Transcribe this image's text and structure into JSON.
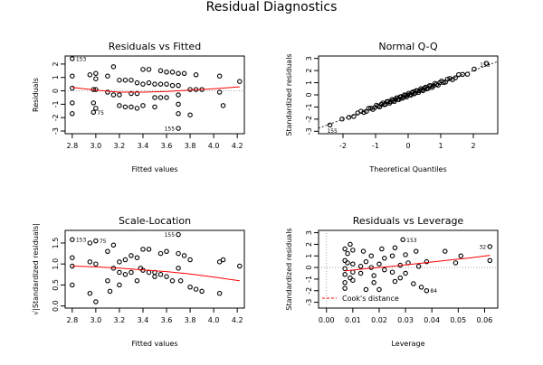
{
  "figure_title": "Residual Diagnostics",
  "chart_data": [
    {
      "type": "scatter",
      "title": "Residuals vs Fitted",
      "xlabel": "Fitted values",
      "ylabel": "Residuals",
      "xlim": [
        2.74,
        4.26
      ],
      "ylim": [
        -3.2,
        2.6
      ],
      "xticks": [
        "2.8",
        "3.0",
        "3.2",
        "3.4",
        "3.6",
        "3.8",
        "4.0",
        "4.2"
      ],
      "xtick_values": [
        2.8,
        3.0,
        3.2,
        3.4,
        3.6,
        3.8,
        4.0,
        4.2
      ],
      "yticks": [
        "-3",
        "-2",
        "-1",
        "0",
        "1",
        "2"
      ],
      "ytick_values": [
        -3,
        -2,
        -1,
        0,
        1,
        2
      ],
      "points": [
        [
          2.8,
          2.4
        ],
        [
          2.8,
          1.1
        ],
        [
          2.8,
          0.2
        ],
        [
          2.8,
          -0.9
        ],
        [
          2.8,
          -1.7
        ],
        [
          2.95,
          1.2
        ],
        [
          2.98,
          0.1
        ],
        [
          2.98,
          -0.9
        ],
        [
          2.98,
          -1.6
        ],
        [
          3.0,
          1.3
        ],
        [
          3.0,
          0.9
        ],
        [
          3.0,
          0.1
        ],
        [
          3.0,
          -1.3
        ],
        [
          3.1,
          1.1
        ],
        [
          3.1,
          -0.1
        ],
        [
          3.15,
          1.8
        ],
        [
          3.15,
          -0.3
        ],
        [
          3.2,
          0.8
        ],
        [
          3.2,
          -0.3
        ],
        [
          3.2,
          -1.1
        ],
        [
          3.25,
          0.8
        ],
        [
          3.25,
          -1.2
        ],
        [
          3.3,
          0.8
        ],
        [
          3.3,
          -0.2
        ],
        [
          3.3,
          -1.2
        ],
        [
          3.35,
          0.6
        ],
        [
          3.35,
          -0.2
        ],
        [
          3.35,
          -1.3
        ],
        [
          3.4,
          1.6
        ],
        [
          3.4,
          0.5
        ],
        [
          3.4,
          -1.1
        ],
        [
          3.45,
          1.6
        ],
        [
          3.45,
          0.6
        ],
        [
          3.5,
          0.5
        ],
        [
          3.5,
          -0.5
        ],
        [
          3.5,
          -1.2
        ],
        [
          3.55,
          1.5
        ],
        [
          3.55,
          0.5
        ],
        [
          3.55,
          -0.5
        ],
        [
          3.6,
          1.4
        ],
        [
          3.6,
          0.5
        ],
        [
          3.6,
          -0.5
        ],
        [
          3.65,
          1.4
        ],
        [
          3.65,
          0.4
        ],
        [
          3.7,
          1.3
        ],
        [
          3.7,
          0.4
        ],
        [
          3.7,
          -0.3
        ],
        [
          3.7,
          -1.0
        ],
        [
          3.7,
          -1.7
        ],
        [
          3.7,
          -2.8
        ],
        [
          3.75,
          1.3
        ],
        [
          3.8,
          0.1
        ],
        [
          3.8,
          -1.8
        ],
        [
          3.85,
          1.2
        ],
        [
          3.85,
          0.1
        ],
        [
          3.9,
          0.1
        ],
        [
          4.05,
          1.1
        ],
        [
          4.05,
          -0.1
        ],
        [
          4.08,
          -1.1
        ],
        [
          4.22,
          0.7
        ]
      ],
      "smooth_x": [
        2.8,
        3.0,
        3.2,
        3.4,
        3.6,
        3.8,
        4.0,
        4.22
      ],
      "smooth_y": [
        0.25,
        0.05,
        -0.1,
        -0.1,
        -0.05,
        0.05,
        0.15,
        0.3
      ],
      "labels": [
        {
          "text": "153",
          "x": 2.8,
          "y": 2.4
        },
        {
          "text": "75",
          "x": 2.98,
          "y": -1.6
        },
        {
          "text": "155",
          "x": 3.7,
          "y": -2.8
        }
      ]
    },
    {
      "type": "scatter",
      "title": "Normal Q-Q",
      "xlabel": "Theoretical Quantiles",
      "ylabel": "Standardized residuals",
      "xlim": [
        -2.75,
        2.75
      ],
      "ylim": [
        -3.2,
        3.2
      ],
      "xticks": [
        "-2",
        "-1",
        "0",
        "1",
        "2"
      ],
      "xtick_values": [
        -2,
        -1,
        0,
        1,
        2
      ],
      "yticks": [
        "-3",
        "-2",
        "-1",
        "0",
        "1",
        "2",
        "3"
      ],
      "ytick_values": [
        -3,
        -2,
        -1,
        0,
        1,
        2,
        3
      ],
      "qq_n": 76,
      "qq_line": [
        [
          -2.75,
          -2.75
        ],
        [
          2.75,
          2.75
        ]
      ],
      "labels": [
        {
          "text": "153",
          "x": 2.6,
          "y": 2.5
        },
        {
          "text": "155",
          "x": -2.6,
          "y": -2.95
        }
      ]
    },
    {
      "type": "scatter",
      "title": "Scale-Location",
      "xlabel": "Fitted values",
      "ylabel": "√|Standardized residuals|",
      "xlim": [
        2.74,
        4.26
      ],
      "ylim": [
        -0.05,
        1.8
      ],
      "xticks": [
        "2.8",
        "3.0",
        "3.2",
        "3.4",
        "3.6",
        "3.8",
        "4.0",
        "4.2"
      ],
      "xtick_values": [
        2.8,
        3.0,
        3.2,
        3.4,
        3.6,
        3.8,
        4.0,
        4.2
      ],
      "yticks": [
        "0.0",
        "0.5",
        "1.0",
        "1.5"
      ],
      "ytick_values": [
        0.0,
        0.5,
        1.0,
        1.5
      ],
      "points": [
        [
          2.8,
          1.58
        ],
        [
          2.8,
          1.15
        ],
        [
          2.8,
          0.95
        ],
        [
          2.8,
          0.5
        ],
        [
          2.95,
          1.5
        ],
        [
          2.95,
          1.05
        ],
        [
          2.95,
          0.3
        ],
        [
          3.0,
          1.55
        ],
        [
          3.0,
          1.0
        ],
        [
          3.0,
          0.1
        ],
        [
          3.1,
          1.3
        ],
        [
          3.1,
          0.6
        ],
        [
          3.12,
          0.35
        ],
        [
          3.15,
          1.45
        ],
        [
          3.15,
          0.9
        ],
        [
          3.2,
          1.05
        ],
        [
          3.2,
          0.8
        ],
        [
          3.2,
          0.5
        ],
        [
          3.25,
          1.1
        ],
        [
          3.25,
          0.75
        ],
        [
          3.3,
          1.2
        ],
        [
          3.3,
          0.8
        ],
        [
          3.35,
          1.15
        ],
        [
          3.35,
          0.6
        ],
        [
          3.38,
          0.9
        ],
        [
          3.4,
          1.35
        ],
        [
          3.4,
          0.85
        ],
        [
          3.45,
          1.35
        ],
        [
          3.45,
          0.8
        ],
        [
          3.5,
          0.8
        ],
        [
          3.5,
          0.7
        ],
        [
          3.55,
          1.25
        ],
        [
          3.55,
          0.75
        ],
        [
          3.6,
          1.3
        ],
        [
          3.6,
          0.7
        ],
        [
          3.65,
          0.6
        ],
        [
          3.7,
          1.7
        ],
        [
          3.7,
          1.25
        ],
        [
          3.7,
          0.9
        ],
        [
          3.72,
          0.6
        ],
        [
          3.75,
          1.2
        ],
        [
          3.8,
          1.1
        ],
        [
          3.8,
          0.45
        ],
        [
          3.85,
          0.4
        ],
        [
          3.9,
          0.35
        ],
        [
          4.05,
          1.05
        ],
        [
          4.05,
          0.3
        ],
        [
          4.08,
          1.1
        ],
        [
          4.22,
          0.95
        ]
      ],
      "smooth_x": [
        2.8,
        3.0,
        3.2,
        3.4,
        3.6,
        3.8,
        4.0,
        4.22
      ],
      "smooth_y": [
        0.95,
        0.93,
        0.9,
        0.86,
        0.82,
        0.76,
        0.69,
        0.6
      ],
      "labels": [
        {
          "text": "153",
          "x": 2.8,
          "y": 1.58
        },
        {
          "text": "75",
          "x": 3.0,
          "y": 1.55
        },
        {
          "text": "155",
          "x": 3.7,
          "y": 1.7
        }
      ]
    },
    {
      "type": "scatter",
      "title": "Residuals vs Leverage",
      "xlabel": "Leverage",
      "ylabel": "Standardized residuals",
      "xlim": [
        -0.003,
        0.065
      ],
      "ylim": [
        -3.5,
        3.2
      ],
      "xticks": [
        "0.00",
        "0.01",
        "0.02",
        "0.03",
        "0.04",
        "0.05",
        "0.06"
      ],
      "xtick_values": [
        0.0,
        0.01,
        0.02,
        0.03,
        0.04,
        0.05,
        0.06
      ],
      "yticks": [
        "-3",
        "-2",
        "-1",
        "0",
        "1",
        "2",
        "3"
      ],
      "ytick_values": [
        -3,
        -2,
        -1,
        0,
        1,
        2,
        3
      ],
      "points": [
        [
          0.007,
          1.6
        ],
        [
          0.007,
          0.6
        ],
        [
          0.007,
          -0.1
        ],
        [
          0.007,
          -0.6
        ],
        [
          0.007,
          -1.3
        ],
        [
          0.007,
          -1.8
        ],
        [
          0.008,
          1.2
        ],
        [
          0.008,
          0.4
        ],
        [
          0.009,
          -0.9
        ],
        [
          0.009,
          2.0
        ],
        [
          0.01,
          1.5
        ],
        [
          0.01,
          0.3
        ],
        [
          0.01,
          -0.4
        ],
        [
          0.01,
          -1.1
        ],
        [
          0.013,
          0.1
        ],
        [
          0.013,
          -0.5
        ],
        [
          0.014,
          1.4
        ],
        [
          0.015,
          0.5
        ],
        [
          0.015,
          -1.9
        ],
        [
          0.017,
          1.0
        ],
        [
          0.017,
          0.0
        ],
        [
          0.018,
          -0.7
        ],
        [
          0.018,
          -1.3
        ],
        [
          0.02,
          0.3
        ],
        [
          0.02,
          -1.9
        ],
        [
          0.021,
          1.6
        ],
        [
          0.022,
          0.8
        ],
        [
          0.022,
          -0.2
        ],
        [
          0.025,
          1.0
        ],
        [
          0.025,
          -0.4
        ],
        [
          0.026,
          1.7
        ],
        [
          0.026,
          -1.2
        ],
        [
          0.028,
          0.2
        ],
        [
          0.028,
          -0.9
        ],
        [
          0.029,
          2.4
        ],
        [
          0.03,
          1.1
        ],
        [
          0.03,
          -0.5
        ],
        [
          0.031,
          0.4
        ],
        [
          0.033,
          -1.4
        ],
        [
          0.034,
          1.4
        ],
        [
          0.035,
          0.1
        ],
        [
          0.036,
          -1.7
        ],
        [
          0.038,
          0.5
        ],
        [
          0.038,
          -2.0
        ],
        [
          0.045,
          1.4
        ],
        [
          0.049,
          0.4
        ],
        [
          0.051,
          1.0
        ],
        [
          0.062,
          1.8
        ],
        [
          0.062,
          0.6
        ]
      ],
      "smooth_x": [
        0.007,
        0.015,
        0.025,
        0.035,
        0.045,
        0.055,
        0.062
      ],
      "smooth_y": [
        -0.3,
        -0.1,
        0.1,
        0.35,
        0.6,
        0.85,
        1.05
      ],
      "labels": [
        {
          "text": "153",
          "x": 0.029,
          "y": 2.4
        },
        {
          "text": "32",
          "x": 0.062,
          "y": 1.8
        },
        {
          "text": "84",
          "x": 0.038,
          "y": -2.0
        }
      ],
      "legend": "Cook's distance",
      "legend_position": "bottom-left"
    }
  ]
}
